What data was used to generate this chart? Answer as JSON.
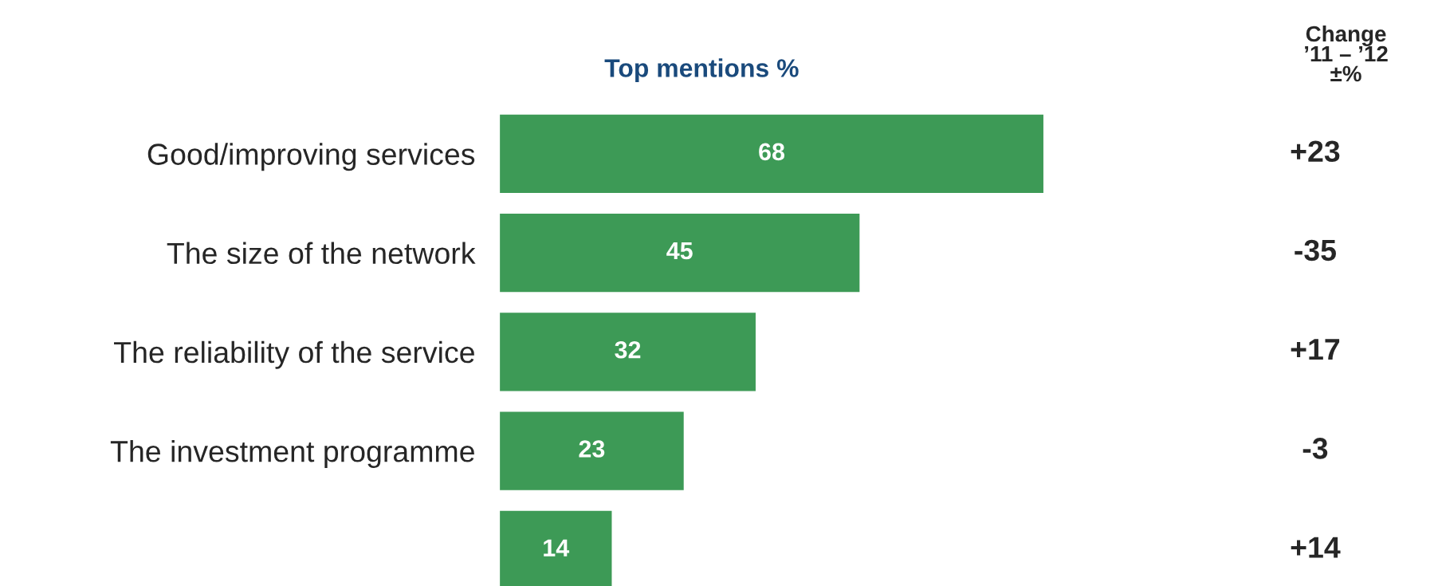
{
  "chart_data": {
    "type": "bar",
    "orientation": "horizontal",
    "title": "Top mentions %",
    "categories": [
      "Good/improving services",
      "The size of the network",
      "The reliability of the service",
      "The investment programme",
      null
    ],
    "values": [
      68,
      45,
      32,
      23,
      14
    ],
    "color": "#3d9a56",
    "data_labels": true,
    "grid": false,
    "legend": false,
    "annotations": [
      "Change\n’11 – ’12\n±%",
      "+23",
      "-35",
      "+17",
      "-3",
      "+14"
    ]
  }
}
